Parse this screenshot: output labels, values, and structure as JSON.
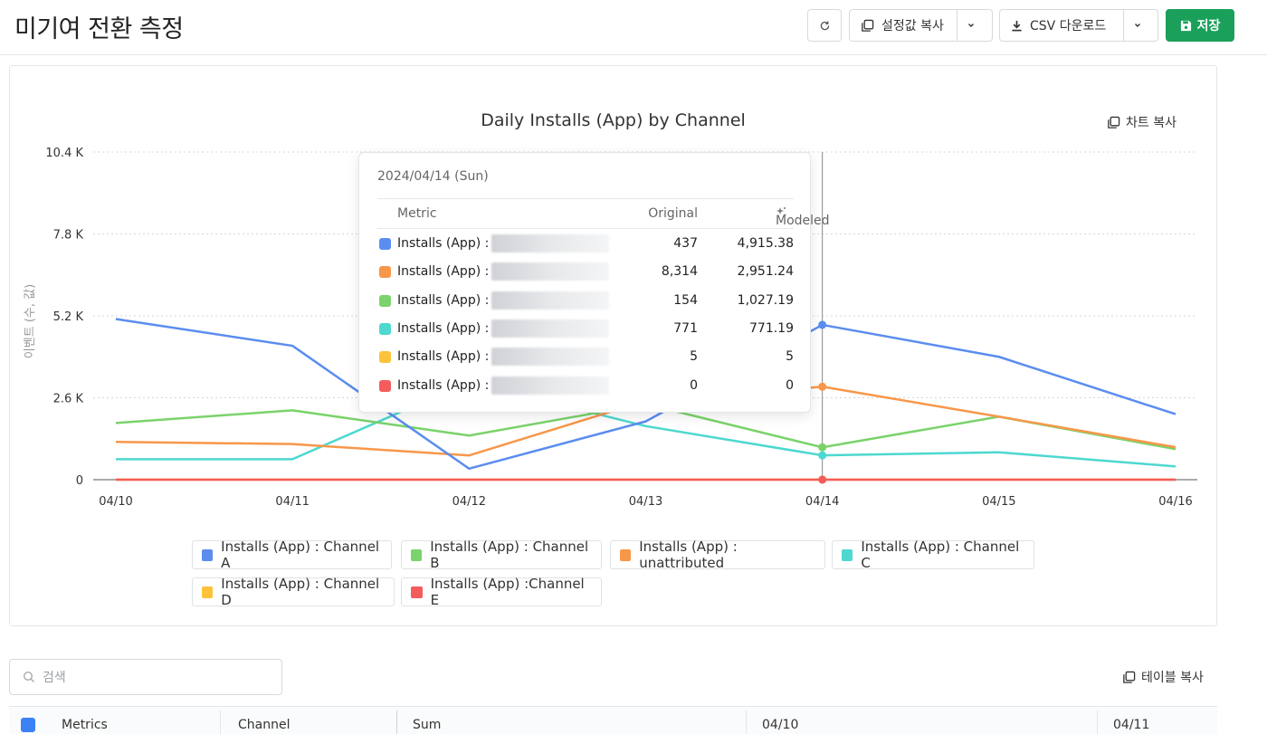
{
  "header": {
    "title": "미기여 전환 측정",
    "copy_settings_label": "설정값 복사",
    "csv_download_label": "CSV 다운로드",
    "save_label": "저장"
  },
  "chart_card": {
    "copy_chart_label": "차트 복사"
  },
  "chart_data": {
    "type": "line",
    "title": "Daily Installs (App) by Channel",
    "ylabel": "이벤트 (수, 값)",
    "xlabel": "",
    "x": [
      "04/10",
      "04/11",
      "04/12",
      "04/13",
      "04/14",
      "04/15",
      "04/16"
    ],
    "ylim": [
      0,
      10400
    ],
    "yticks": [
      0,
      2600,
      5200,
      7800,
      10400
    ],
    "ytick_labels": [
      "0",
      "2.6 K",
      "5.2 K",
      "7.8 K",
      "10.4 K"
    ],
    "grid": true,
    "legend_position": "bottom",
    "series": [
      {
        "name": "Installs (App) : Channel A",
        "color": "#5b8def",
        "values": [
          5100,
          4250,
          350,
          1850,
          4915,
          3900,
          2080
        ]
      },
      {
        "name": "Installs (App) : Channel B",
        "color": "#7ad36b",
        "values": [
          1800,
          2200,
          1400,
          2400,
          1027,
          2000,
          970
        ]
      },
      {
        "name": "Installs (App) : unattributed",
        "color": "#f7974a",
        "values": [
          1200,
          1130,
          770,
          2500,
          2951,
          2000,
          1030
        ]
      },
      {
        "name": "Installs (App) : Channel C",
        "color": "#4dd8d0",
        "values": [
          650,
          650,
          3100,
          1700,
          771,
          870,
          420
        ]
      },
      {
        "name": "Installs (App) : Channel D",
        "color": "#fcc33a",
        "values": [
          5,
          5,
          5,
          5,
          5,
          5,
          5
        ]
      },
      {
        "name": "Installs (App) :Channel E",
        "color": "#f45c5c",
        "values": [
          0,
          0,
          0,
          0,
          0,
          0,
          0
        ]
      }
    ],
    "hover_index": 4
  },
  "tooltip": {
    "date": "2024/04/14 (Sun)",
    "col_metric": "Metric",
    "col_original": "Original",
    "col_modeled": "Modeled",
    "rows": [
      {
        "label": "Installs (App) :",
        "color": "#5b8def",
        "original": "437",
        "modeled": "4,915.38"
      },
      {
        "label": "Installs (App) :",
        "color": "#f7974a",
        "original": "8,314",
        "modeled": "2,951.24"
      },
      {
        "label": "Installs (App) :",
        "color": "#7ad36b",
        "original": "154",
        "modeled": "1,027.19"
      },
      {
        "label": "Installs (App) :",
        "color": "#4dd8d0",
        "original": "771",
        "modeled": "771.19"
      },
      {
        "label": "Installs (App) :",
        "color": "#fcc33a",
        "original": "5",
        "modeled": "5"
      },
      {
        "label": "Installs (App) :",
        "color": "#f45c5c",
        "original": "0",
        "modeled": "0"
      }
    ]
  },
  "legend": [
    {
      "label": "Installs (App) : Channel A",
      "color": "#5b8def"
    },
    {
      "label": "Installs (App) : Channel B",
      "color": "#7ad36b"
    },
    {
      "label": "Installs (App) : unattributed",
      "color": "#f7974a"
    },
    {
      "label": "Installs (App) : Channel C",
      "color": "#4dd8d0"
    },
    {
      "label": "Installs (App) : Channel D",
      "color": "#fcc33a"
    },
    {
      "label": "Installs (App) :Channel E",
      "color": "#f45c5c"
    }
  ],
  "table": {
    "search_placeholder": "검색",
    "copy_table_label": "테이블 복사",
    "columns": [
      "Metrics",
      "Channel",
      "Sum",
      "04/10",
      "04/11"
    ]
  }
}
